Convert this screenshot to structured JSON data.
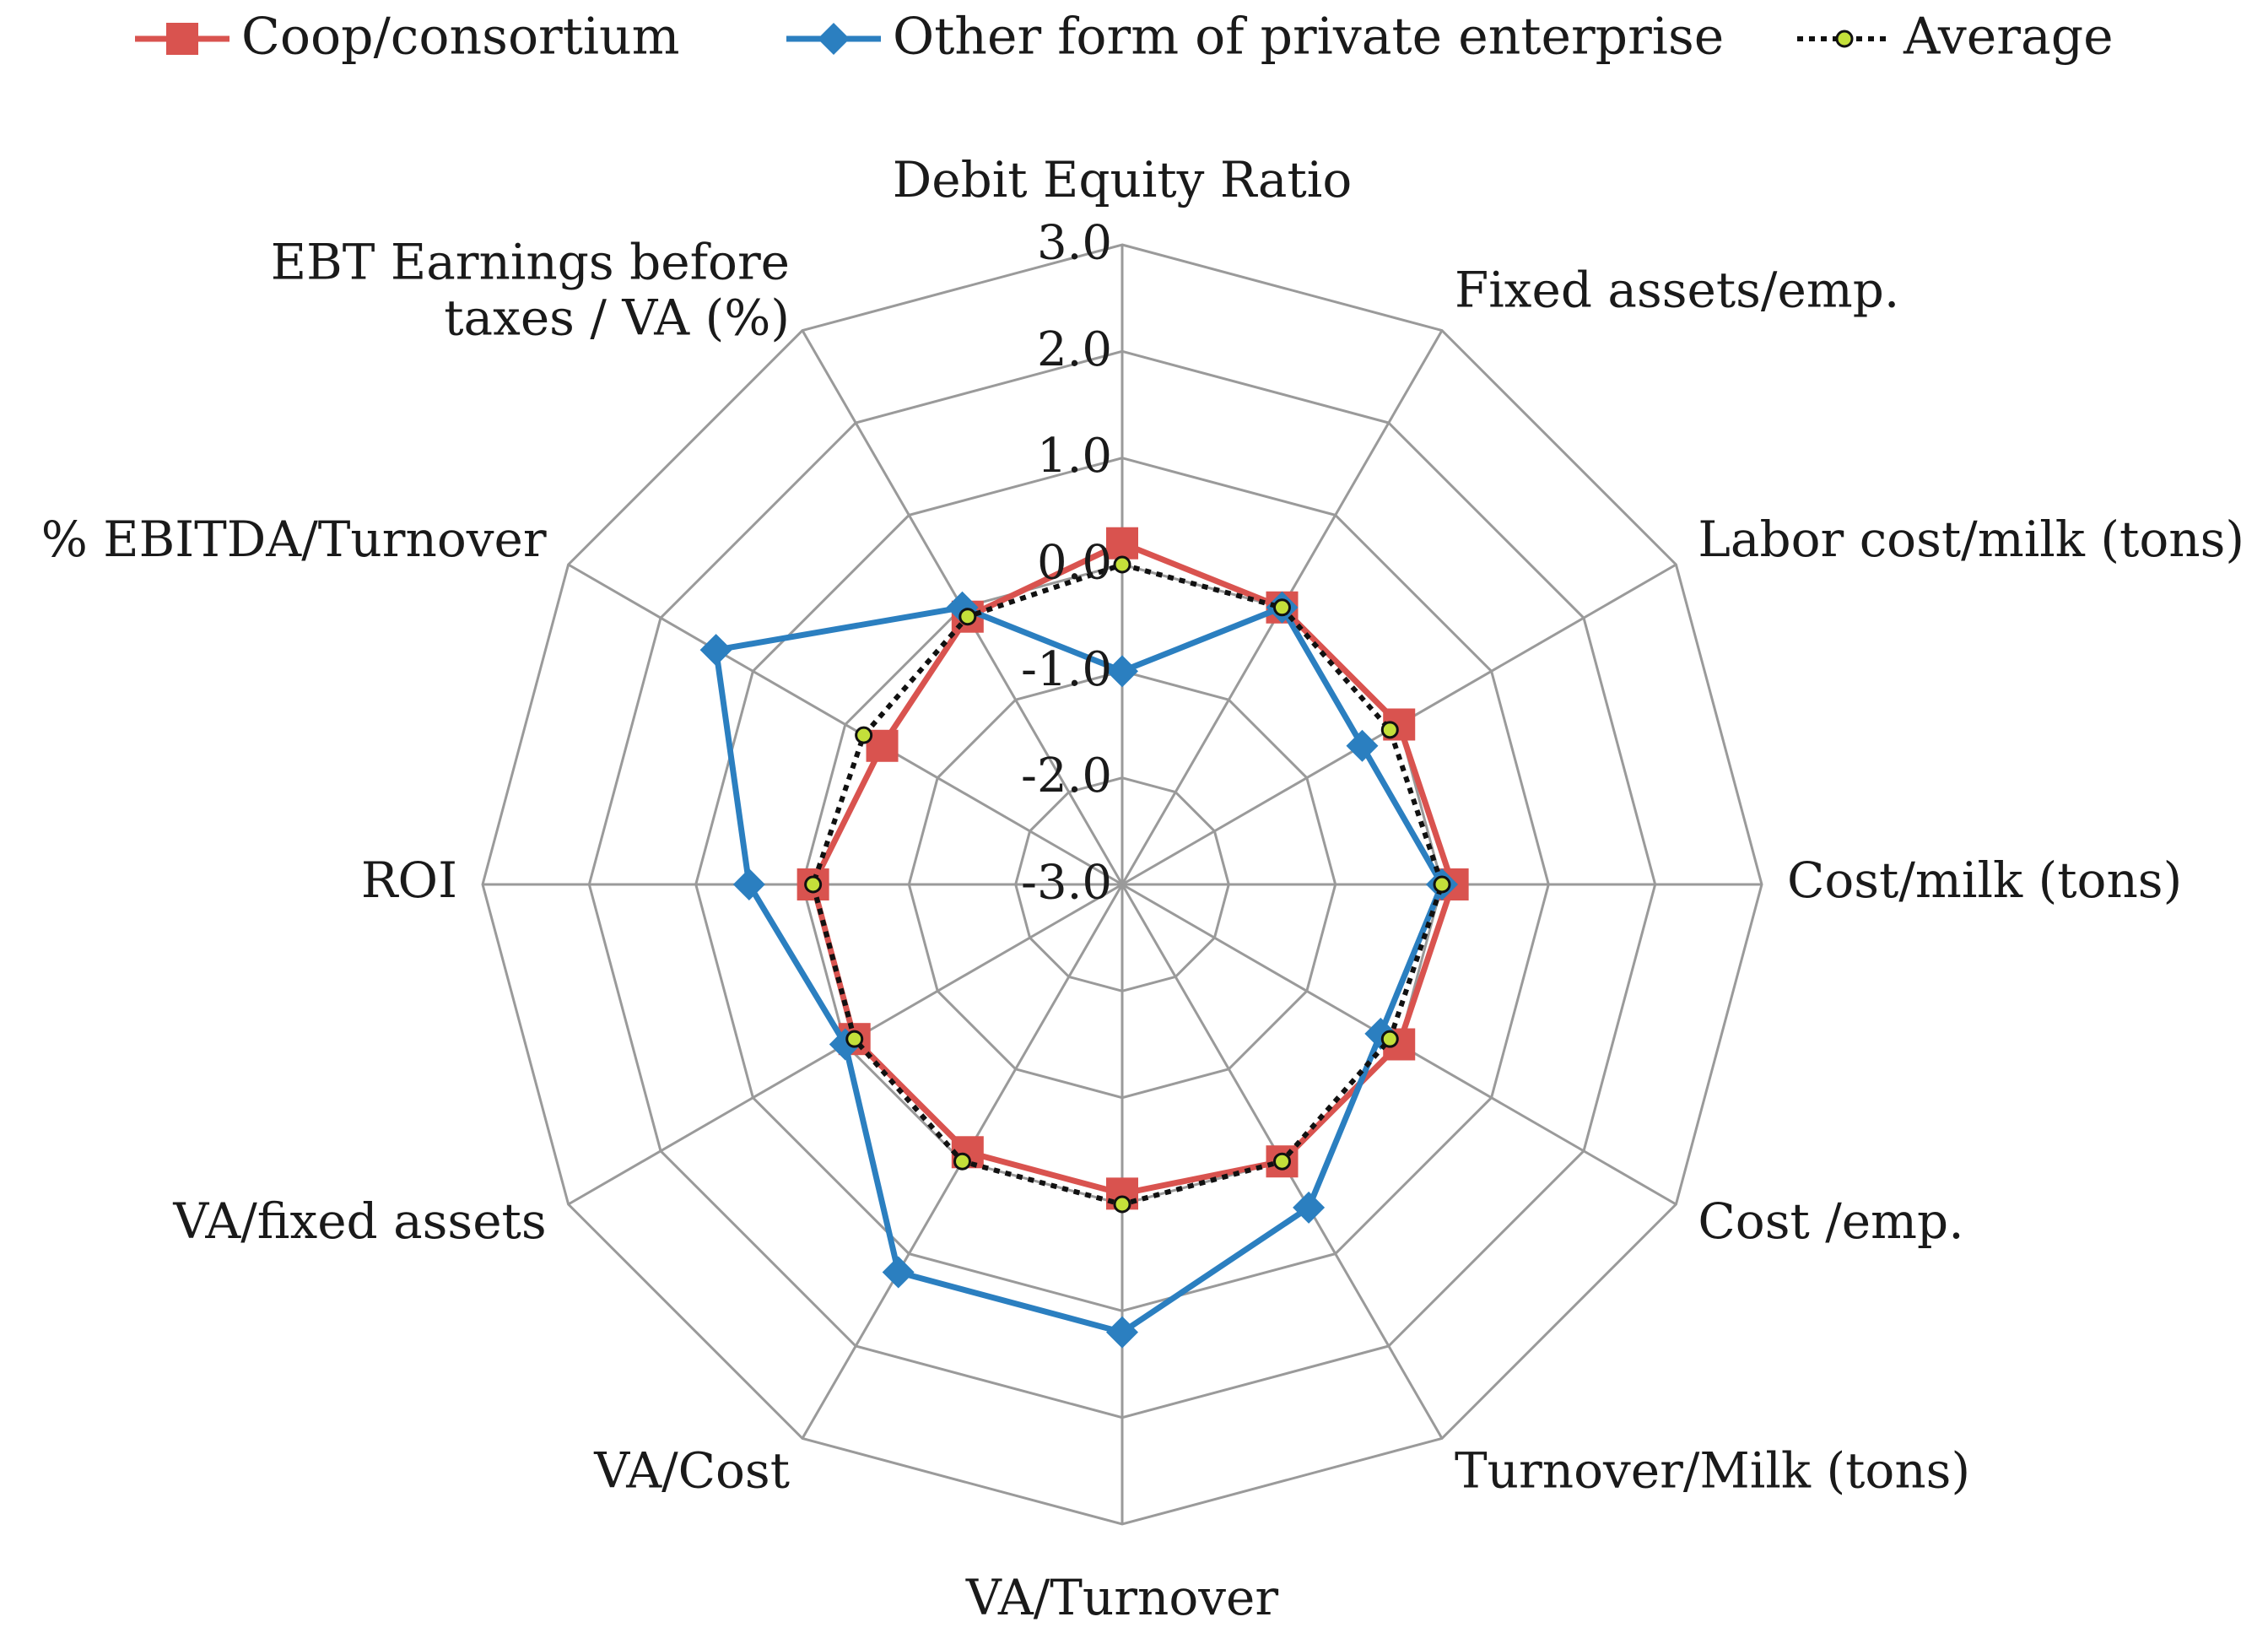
{
  "chart_data": {
    "type": "radar",
    "categories": [
      "Debit Equity Ratio",
      "Fixed assets/emp.",
      "Labor cost/milk (tons)",
      "Cost/milk (tons)",
      "Cost /emp.",
      "Turnover/Milk (tons)",
      "VA/Turnover",
      "VA/Cost",
      "VA/fixed assets",
      "ROI",
      "% EBITDA/Turnover",
      "EBT Earnings before taxes / VA (%)"
    ],
    "category_lines": [
      [
        "Debit Equity Ratio"
      ],
      [
        "Fixed assets/emp."
      ],
      [
        "Labor cost/milk (tons)"
      ],
      [
        "Cost/milk (tons)"
      ],
      [
        "Cost /emp."
      ],
      [
        "Turnover/Milk (tons)"
      ],
      [
        "VA/Turnover"
      ],
      [
        "VA/Cost"
      ],
      [
        "VA/fixed assets"
      ],
      [
        "ROI"
      ],
      [
        "% EBITDA/Turnover"
      ],
      [
        "EBT Earnings before",
        "taxes / VA (%)"
      ]
    ],
    "ticks": [
      "3.0",
      "2.0",
      "1.0",
      "0.0",
      "-1.0",
      "-2.0",
      "-3.0"
    ],
    "tick_values": [
      3,
      2,
      1,
      0,
      -1,
      -2,
      -3
    ],
    "rlim": [
      -3,
      3
    ],
    "legend_position": "top",
    "series": [
      {
        "name": "Coop/consortium",
        "color": "#d9534f",
        "marker": "square",
        "values": [
          0.2,
          0.0,
          0.0,
          0.1,
          0.0,
          0.0,
          -0.1,
          -0.1,
          -0.1,
          -0.1,
          -0.4,
          -0.1
        ]
      },
      {
        "name": "Other form of private enterprise",
        "color": "#2b7fc0",
        "marker": "diamond",
        "values": [
          -1.0,
          0.0,
          -0.4,
          0.0,
          -0.2,
          0.5,
          1.2,
          1.2,
          0.0,
          0.5,
          1.4,
          0.0
        ]
      },
      {
        "name": "Average",
        "color": "#111111",
        "marker": "dot",
        "values": [
          0.0,
          0.0,
          -0.1,
          0.0,
          -0.1,
          0.0,
          0.0,
          0.0,
          -0.1,
          -0.1,
          -0.2,
          -0.1
        ]
      }
    ]
  }
}
